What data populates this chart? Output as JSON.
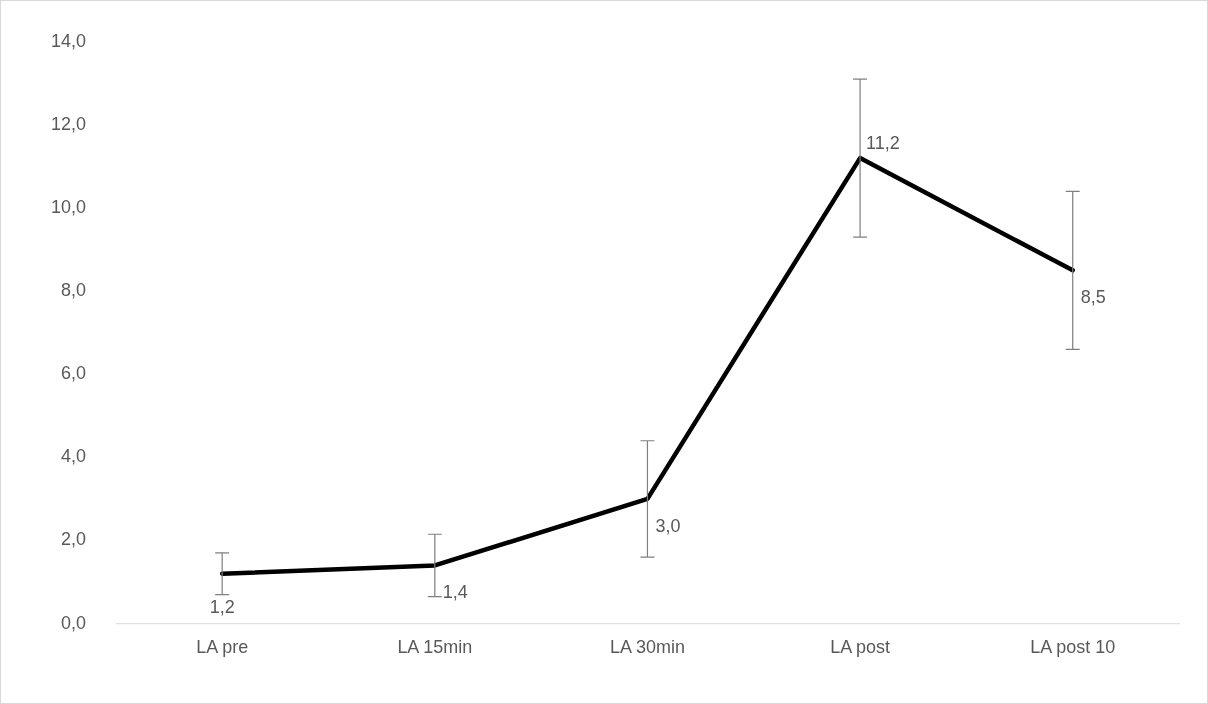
{
  "chart_data": {
    "type": "line",
    "categories": [
      "LA pre",
      "LA 15min",
      "LA 30min",
      "LA post",
      "LA post 10"
    ],
    "series": [
      {
        "color": "#000000",
        "values": [
          1.2,
          1.4,
          3.0,
          11.2,
          8.5
        ],
        "errors": [
          0.5,
          0.75,
          1.4,
          1.9,
          1.9
        ],
        "value_labels": [
          "1,2",
          "1,4",
          "3,0",
          "11,2",
          "8,5"
        ]
      }
    ],
    "ylim": [
      0,
      14
    ],
    "yticks": [
      {
        "value": 0,
        "label": "0,0"
      },
      {
        "value": 2,
        "label": "2,0"
      },
      {
        "value": 4,
        "label": "4,0"
      },
      {
        "value": 6,
        "label": "6,0"
      },
      {
        "value": 8,
        "label": "8,0"
      },
      {
        "value": 10,
        "label": "10,0"
      },
      {
        "value": 12,
        "label": "12,0"
      },
      {
        "value": 14,
        "label": "14,0"
      }
    ],
    "grid": false,
    "legend": false,
    "marker": "none",
    "line_style": "solid"
  }
}
